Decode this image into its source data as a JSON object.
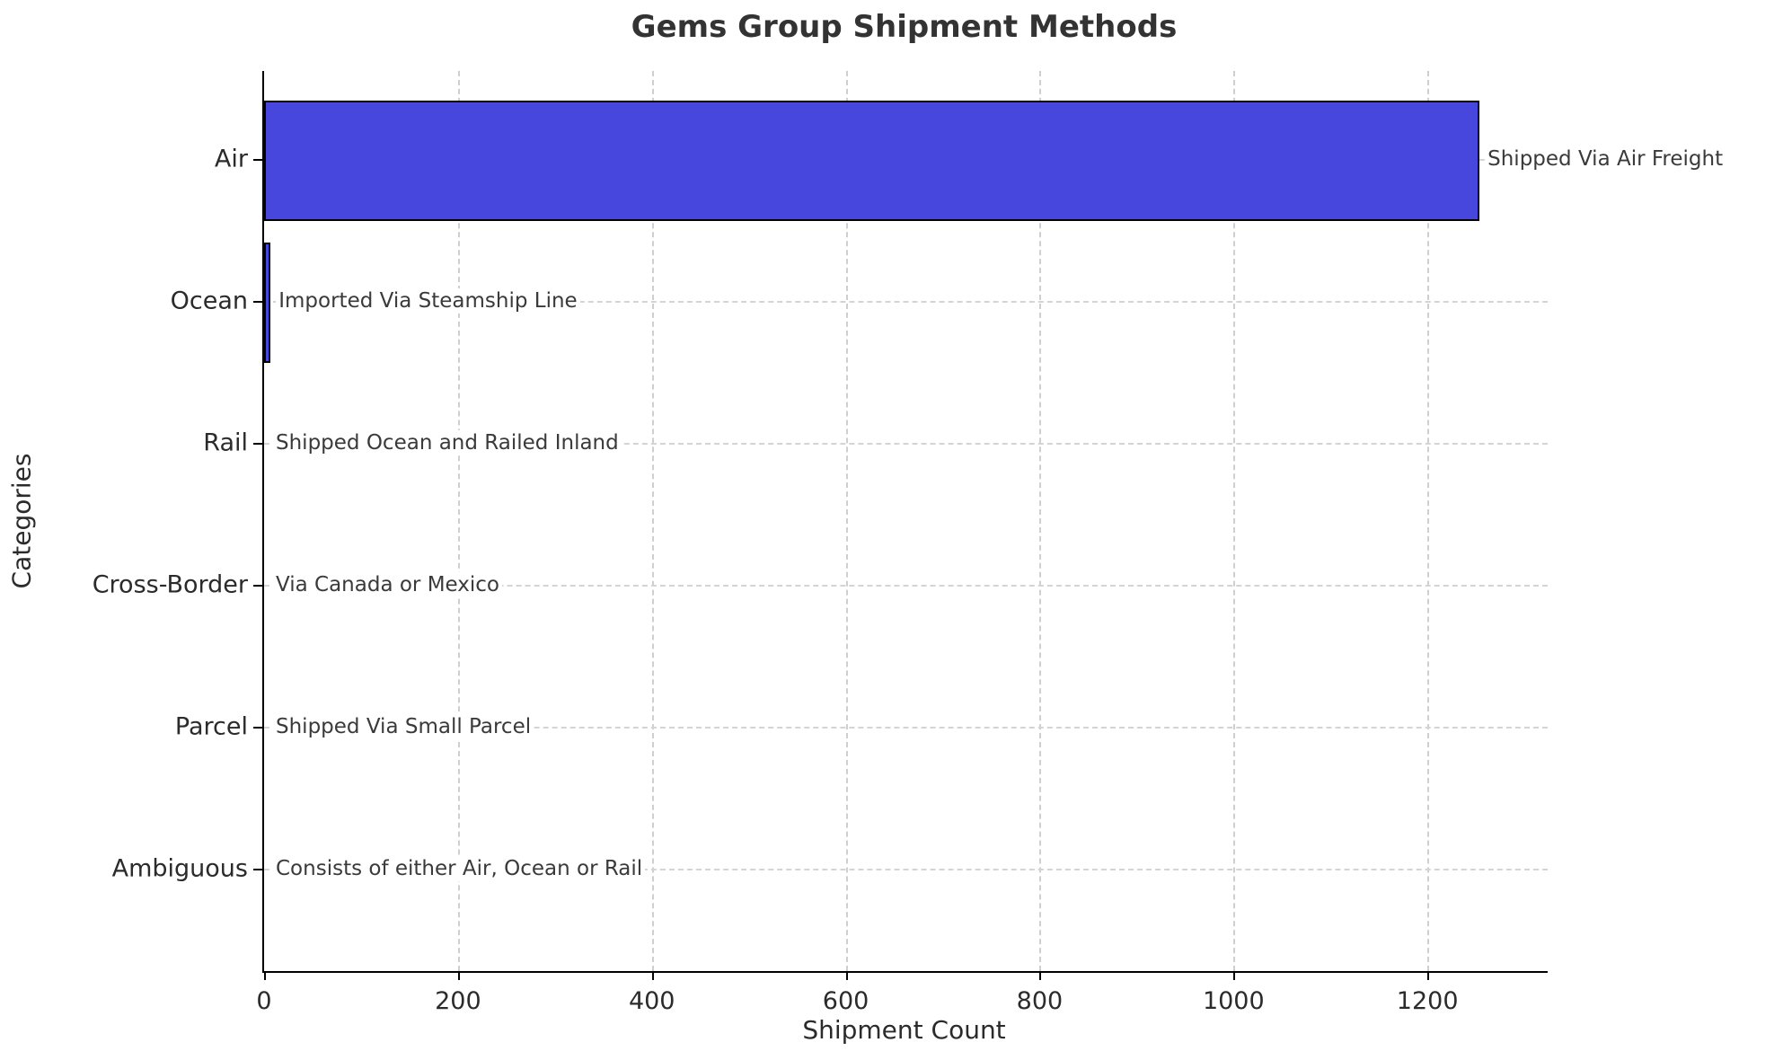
{
  "chart_data": {
    "type": "bar",
    "orientation": "horizontal",
    "title": "Gems Group Shipment Methods",
    "xlabel": "Shipment Count",
    "ylabel": "Categories",
    "categories": [
      "Air",
      "Ocean",
      "Rail",
      "Cross-Border",
      "Parcel",
      "Ambiguous"
    ],
    "values": [
      1250,
      3,
      0,
      0,
      0,
      0
    ],
    "annotations": [
      "Shipped Via Air Freight",
      "Imported Via Steamship Line",
      "Shipped Ocean and Railed Inland",
      "Via Canada or Mexico",
      "Shipped Via Small Parcel",
      "Consists of either Air, Ocean or Rail"
    ],
    "x_ticks": [
      0,
      200,
      400,
      600,
      800,
      1000,
      1200
    ],
    "xlim": [
      0,
      1324
    ],
    "grid": "dashed",
    "legend": "none",
    "bar_color": "#4747dd",
    "bar_edge_color": "#000000",
    "text_color": "#333333",
    "grid_color": "#cfcfcf"
  }
}
